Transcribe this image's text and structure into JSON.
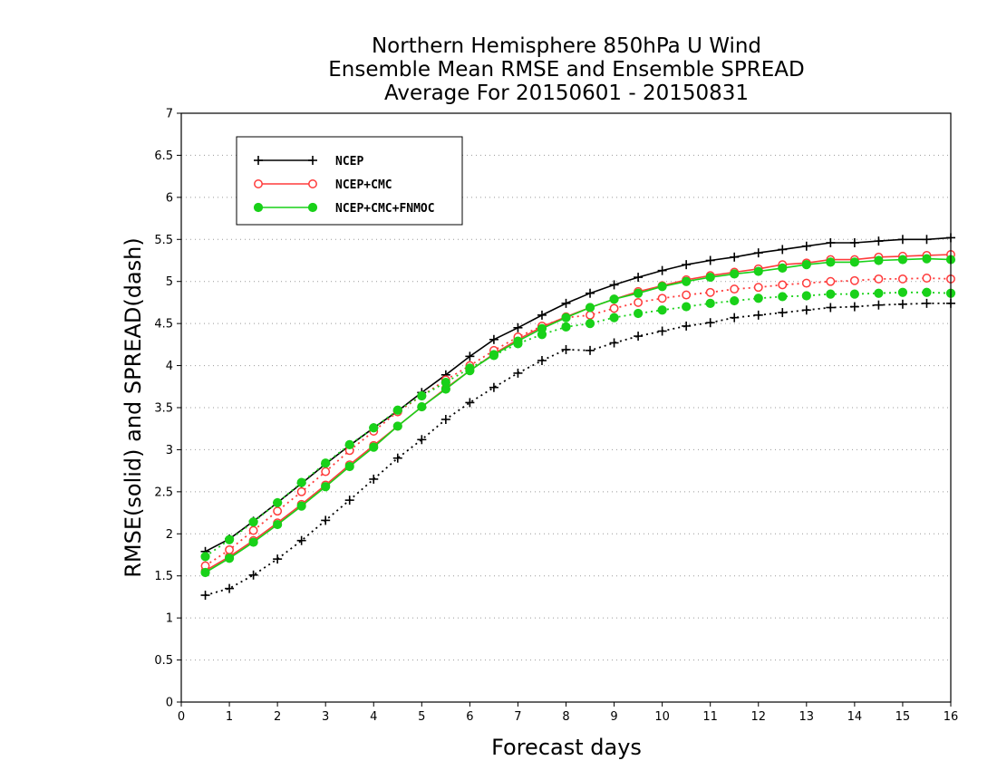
{
  "chart_data": {
    "type": "line",
    "title": [
      "Northern Hemisphere 850hPa U Wind",
      "Ensemble Mean RMSE and Ensemble SPREAD",
      "Average For 20150601 - 20150831"
    ],
    "xlabel": "Forecast days",
    "ylabel": "RMSE(solid) and SPREAD(dash)",
    "xlim": [
      0,
      16
    ],
    "ylim": [
      0,
      7
    ],
    "xticks": [
      "0",
      "1",
      "2",
      "3",
      "4",
      "5",
      "6",
      "7",
      "8",
      "9",
      "10",
      "11",
      "12",
      "13",
      "14",
      "15",
      "16"
    ],
    "yticks": [
      "0",
      "0.5",
      "1",
      "1.5",
      "2",
      "2.5",
      "3",
      "3.5",
      "4",
      "4.5",
      "5",
      "5.5",
      "6",
      "6.5",
      "7"
    ],
    "grid": true,
    "legend_position": "top-left",
    "x": [
      0.5,
      1,
      1.5,
      2,
      2.5,
      3,
      3.5,
      4,
      4.5,
      5,
      5.5,
      6,
      6.5,
      7,
      7.5,
      8,
      8.5,
      9,
      9.5,
      10,
      10.5,
      11,
      11.5,
      12,
      12.5,
      13,
      13.5,
      14,
      14.5,
      15,
      15.5,
      16
    ],
    "series": [
      {
        "name": "NCEP",
        "color": "#000000",
        "marker": "plus",
        "rmse": [
          1.79,
          1.94,
          2.15,
          2.37,
          2.6,
          2.83,
          3.05,
          3.26,
          3.46,
          3.68,
          3.89,
          4.11,
          4.31,
          4.45,
          4.6,
          4.74,
          4.86,
          4.96,
          5.05,
          5.13,
          5.2,
          5.25,
          5.29,
          5.34,
          5.38,
          5.42,
          5.46,
          5.46,
          5.48,
          5.5,
          5.5,
          5.52
        ],
        "spread": [
          1.27,
          1.35,
          1.51,
          1.7,
          1.92,
          2.16,
          2.4,
          2.65,
          2.9,
          3.12,
          3.36,
          3.56,
          3.74,
          3.91,
          4.06,
          4.19,
          4.18,
          4.27,
          4.35,
          4.41,
          4.47,
          4.51,
          4.57,
          4.6,
          4.63,
          4.66,
          4.69,
          4.7,
          4.72,
          4.73,
          4.74,
          4.74
        ]
      },
      {
        "name": "NCEP+CMC",
        "color": "#ff3b3b",
        "marker": "open-circle",
        "rmse": [
          1.56,
          1.73,
          1.92,
          2.13,
          2.35,
          2.58,
          2.82,
          3.05,
          3.28,
          3.51,
          3.73,
          3.94,
          4.14,
          4.31,
          4.46,
          4.58,
          4.69,
          4.79,
          4.88,
          4.95,
          5.02,
          5.07,
          5.11,
          5.15,
          5.2,
          5.22,
          5.26,
          5.26,
          5.29,
          5.3,
          5.31,
          5.32
        ],
        "spread": [
          1.62,
          1.81,
          2.04,
          2.27,
          2.5,
          2.74,
          2.99,
          3.22,
          3.45,
          3.64,
          3.83,
          4.0,
          4.18,
          4.34,
          4.47,
          4.57,
          4.6,
          4.68,
          4.75,
          4.8,
          4.84,
          4.87,
          4.91,
          4.93,
          4.96,
          4.98,
          5.0,
          5.01,
          5.03,
          5.03,
          5.04,
          5.03
        ]
      },
      {
        "name": "NCEP+CMC+FNMOC",
        "color": "#19d119",
        "marker": "filled-circle",
        "rmse": [
          1.54,
          1.71,
          1.9,
          2.11,
          2.33,
          2.56,
          2.8,
          3.03,
          3.28,
          3.51,
          3.72,
          3.94,
          4.13,
          4.29,
          4.44,
          4.57,
          4.69,
          4.79,
          4.86,
          4.94,
          5.0,
          5.05,
          5.09,
          5.12,
          5.16,
          5.2,
          5.23,
          5.23,
          5.25,
          5.26,
          5.27,
          5.26
        ],
        "spread": [
          1.73,
          1.93,
          2.14,
          2.37,
          2.61,
          2.84,
          3.06,
          3.26,
          3.47,
          3.64,
          3.8,
          3.97,
          4.12,
          4.26,
          4.37,
          4.46,
          4.5,
          4.57,
          4.62,
          4.66,
          4.7,
          4.74,
          4.77,
          4.8,
          4.82,
          4.83,
          4.85,
          4.85,
          4.86,
          4.87,
          4.87,
          4.86
        ]
      }
    ]
  }
}
